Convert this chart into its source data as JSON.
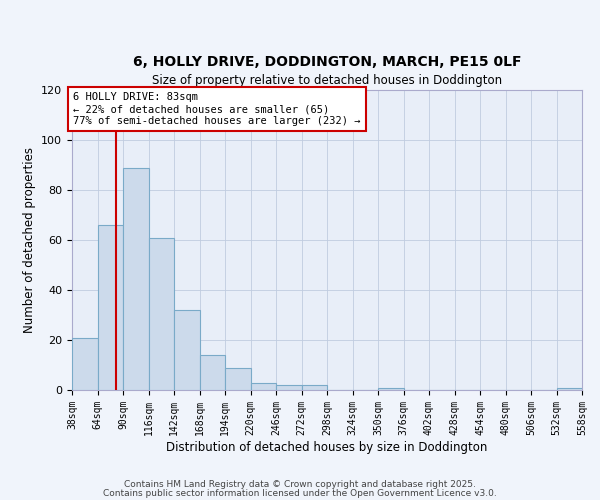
{
  "title": "6, HOLLY DRIVE, DODDINGTON, MARCH, PE15 0LF",
  "subtitle": "Size of property relative to detached houses in Doddington",
  "xlabel": "Distribution of detached houses by size in Doddington",
  "ylabel": "Number of detached properties",
  "bar_color": "#ccdaeb",
  "bar_edge_color": "#7aaac8",
  "background_color": "#e8eef8",
  "grid_color": "#c0cce0",
  "property_size": 83,
  "property_line_color": "#cc0000",
  "bin_edges": [
    38,
    64,
    90,
    116,
    142,
    168,
    194,
    220,
    246,
    272,
    298,
    324,
    350,
    376,
    402,
    428,
    454,
    480,
    506,
    532,
    558
  ],
  "bin_counts": [
    21,
    66,
    89,
    61,
    32,
    14,
    9,
    3,
    2,
    2,
    0,
    0,
    1,
    0,
    0,
    0,
    0,
    0,
    0,
    1
  ],
  "annotation_line1": "6 HOLLY DRIVE: 83sqm",
  "annotation_line2": "← 22% of detached houses are smaller (65)",
  "annotation_line3": "77% of semi-detached houses are larger (232) →",
  "annotation_box_edge_color": "#cc0000",
  "annotation_fontsize": 7.5,
  "ylim": [
    0,
    120
  ],
  "tick_labels": [
    "38sqm",
    "64sqm",
    "90sqm",
    "116sqm",
    "142sqm",
    "168sqm",
    "194sqm",
    "220sqm",
    "246sqm",
    "272sqm",
    "298sqm",
    "324sqm",
    "350sqm",
    "376sqm",
    "402sqm",
    "428sqm",
    "454sqm",
    "480sqm",
    "506sqm",
    "532sqm",
    "558sqm"
  ],
  "footer_text1": "Contains HM Land Registry data © Crown copyright and database right 2025.",
  "footer_text2": "Contains public sector information licensed under the Open Government Licence v3.0.",
  "title_fontsize": 10,
  "subtitle_fontsize": 8.5,
  "xlabel_fontsize": 8.5,
  "ylabel_fontsize": 8.5,
  "tick_fontsize": 7,
  "ytick_fontsize": 8,
  "footer_fontsize": 6.5
}
